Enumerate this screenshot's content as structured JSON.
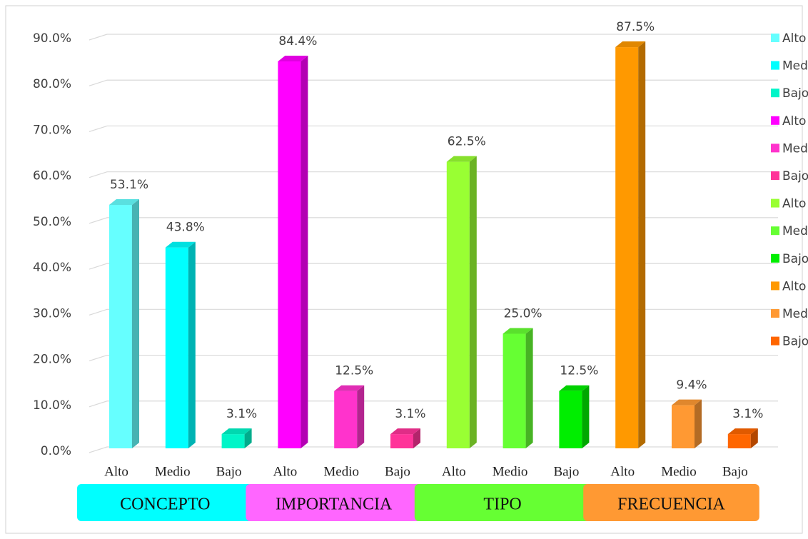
{
  "chart_data": {
    "type": "bar3d",
    "categories": [
      "Alto",
      "Medio",
      "Bajo",
      "Alto",
      "Medio",
      "Bajo",
      "Alto",
      "Medio",
      "Bajo",
      "Alto",
      "Medio",
      "Bajo"
    ],
    "values": [
      53.1,
      43.8,
      3.1,
      84.4,
      12.5,
      3.1,
      62.5,
      25.0,
      12.5,
      87.5,
      9.4,
      3.1
    ],
    "value_labels": [
      "53.1%",
      "43.8%",
      "3.1%",
      "84.4%",
      "12.5%",
      "3.1%",
      "62.5%",
      "25.0%",
      "12.5%",
      "87.5%",
      "9.4%",
      "3.1%"
    ],
    "colors": [
      "#66ffff",
      "#00ffff",
      "#00f5c8",
      "#ff00ff",
      "#ff33cc",
      "#ff3399",
      "#99ff33",
      "#66ff33",
      "#00ee00",
      "#ff9900",
      "#ff9933",
      "#ff6600"
    ],
    "groups": [
      {
        "label": "CONCEPTO",
        "color": "#00ffff"
      },
      {
        "label": "IMPORTANCIA",
        "color": "#ff66ff"
      },
      {
        "label": "TIPO",
        "color": "#66ff33"
      },
      {
        "label": "FRECUENCIA",
        "color": "#ff9933"
      }
    ],
    "ylim": [
      0,
      90
    ],
    "yticks": [
      {
        "value": 0,
        "label": "0.0%"
      },
      {
        "value": 10,
        "label": "10.0%"
      },
      {
        "value": 20,
        "label": "20.0%"
      },
      {
        "value": 30,
        "label": "30.0%"
      },
      {
        "value": 40,
        "label": "40.0%"
      },
      {
        "value": 50,
        "label": "50.0%"
      },
      {
        "value": 60,
        "label": "60.0%"
      },
      {
        "value": 70,
        "label": "70.0%"
      },
      {
        "value": 80,
        "label": "80.0%"
      },
      {
        "value": 90,
        "label": "90.0%"
      }
    ],
    "grid": true,
    "legend": "right"
  }
}
